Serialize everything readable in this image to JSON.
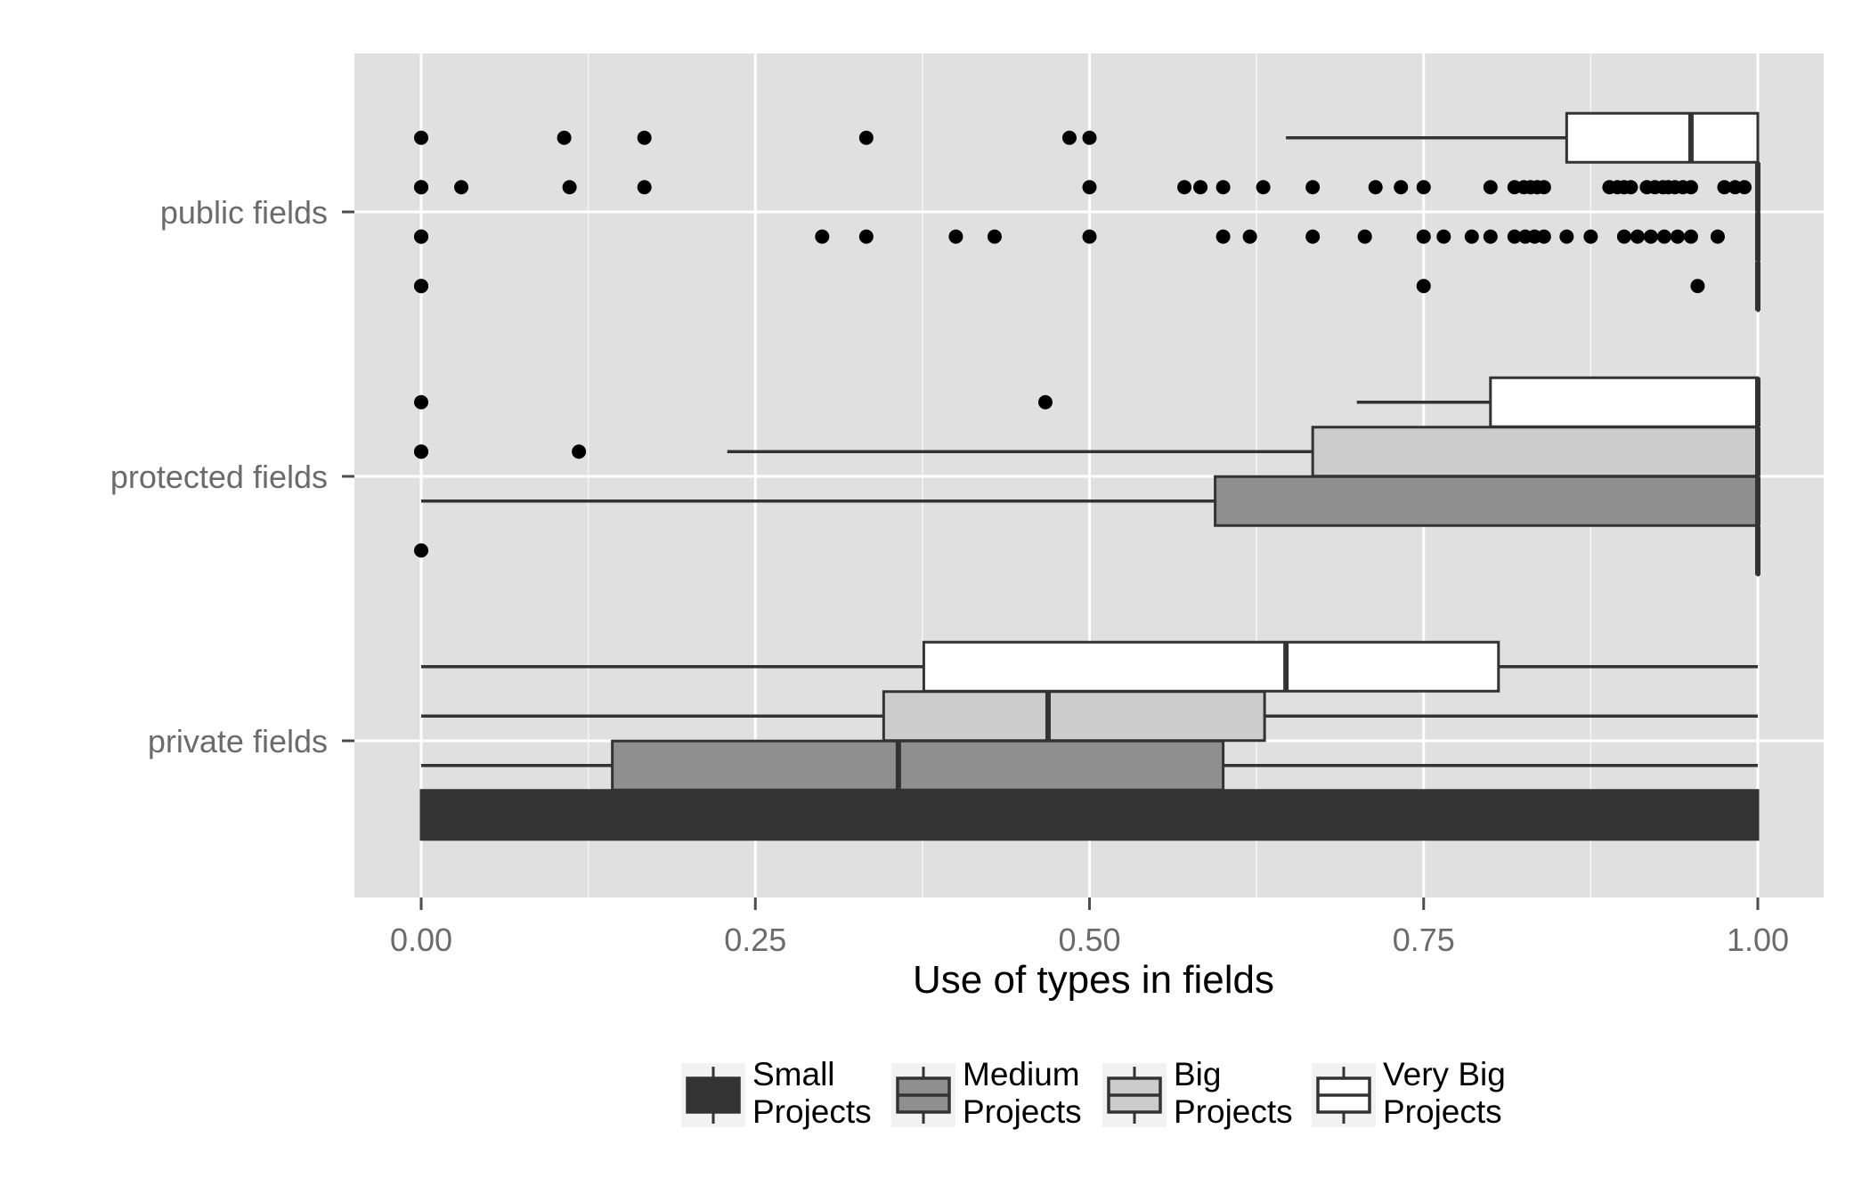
{
  "chart_data": {
    "type": "boxplot",
    "orientation": "horizontal",
    "xlabel": "Use of types in fields",
    "xlim": [
      -0.025,
      1.03
    ],
    "x_ticks": [
      0,
      0.25,
      0.5,
      0.75,
      1
    ],
    "x_tick_labels": [
      "0.00",
      "0.25",
      "0.50",
      "0.75",
      "1.00"
    ],
    "categories": [
      "public fields",
      "protected fields",
      "private fields"
    ],
    "category_order_bottom_to_top": [
      "private fields",
      "protected fields",
      "public fields"
    ],
    "legend_position": "bottom",
    "grid": true,
    "colors": {
      "panel_background": "#e0e0e0",
      "grid": "#ffffff",
      "outline": "#333333",
      "points": "#000000"
    },
    "series": [
      {
        "name": "Small Projects",
        "legend_lines": [
          "Small",
          "Projects"
        ],
        "fill": "#333333",
        "boxes": {
          "public fields": {
            "min": 1.0,
            "q1": 1.0,
            "median": 1.0,
            "q3": 1.0,
            "max": 1.0,
            "outliers": [
              0,
              0,
              0.75,
              0.955
            ]
          },
          "protected fields": {
            "min": 1.0,
            "q1": 1.0,
            "median": 1.0,
            "q3": 1.0,
            "max": 1.0,
            "outliers": [
              0
            ]
          },
          "private fields": {
            "min": 0.0,
            "q1": 0.0,
            "median": 0.212,
            "q3": 1.0,
            "max": 1.0,
            "outliers": []
          }
        }
      },
      {
        "name": "Medium Projects",
        "legend_lines": [
          "Medium",
          "Projects"
        ],
        "fill": "#8f8f8f",
        "boxes": {
          "public fields": {
            "min": 1.0,
            "q1": 1.0,
            "median": 1.0,
            "q3": 1.0,
            "max": 1.0,
            "outliers": [
              0,
              0,
              0.3,
              0.333,
              0.4,
              0.429,
              0.5,
              0.6,
              0.62,
              0.667,
              0.706,
              0.75,
              0.765,
              0.786,
              0.8,
              0.818,
              0.826,
              0.833,
              0.84,
              0.857,
              0.875,
              0.9,
              0.91,
              0.92,
              0.93,
              0.94,
              0.95,
              0.97
            ]
          },
          "protected fields": {
            "min": 0.0,
            "q1": 0.594,
            "median": 1.0,
            "q3": 1.0,
            "max": 1.0,
            "outliers": []
          },
          "private fields": {
            "min": 0.0,
            "q1": 0.143,
            "median": 0.357,
            "q3": 0.6,
            "max": 1.0,
            "outliers": []
          }
        }
      },
      {
        "name": "Big Projects",
        "legend_lines": [
          "Big",
          "Projects"
        ],
        "fill": "#cccccc",
        "boxes": {
          "public fields": {
            "min": 1.0,
            "q1": 1.0,
            "median": 1.0,
            "q3": 1.0,
            "max": 1.0,
            "outliers": [
              0,
              0,
              0.03,
              0.111,
              0.167,
              0.5,
              0.571,
              0.583,
              0.6,
              0.63,
              0.667,
              0.714,
              0.733,
              0.75,
              0.8,
              0.818,
              0.825,
              0.83,
              0.835,
              0.84,
              0.889,
              0.895,
              0.9,
              0.905,
              0.917,
              0.923,
              0.929,
              0.933,
              0.938,
              0.944,
              0.95,
              0.975,
              0.983,
              0.99
            ]
          },
          "protected fields": {
            "min": 0.229,
            "q1": 0.667,
            "median": 1.0,
            "q3": 1.0,
            "max": 1.0,
            "outliers": [
              0,
              0,
              0.118
            ]
          },
          "private fields": {
            "min": 0.0,
            "q1": 0.346,
            "median": 0.469,
            "q3": 0.631,
            "max": 1.0,
            "outliers": []
          }
        }
      },
      {
        "name": "Very Big Projects",
        "legend_lines": [
          "Very Big",
          "Projects"
        ],
        "fill": "#ffffff",
        "boxes": {
          "public fields": {
            "min": 0.647,
            "q1": 0.857,
            "median": 0.95,
            "q3": 1.0,
            "max": 1.0,
            "outliers": [
              0,
              0.107,
              0.167,
              0.333,
              0.485,
              0.5
            ]
          },
          "protected fields": {
            "min": 0.7,
            "q1": 0.8,
            "median": 1.0,
            "q3": 1.0,
            "max": 1.0,
            "outliers": [
              0,
              0.467
            ]
          },
          "private fields": {
            "min": 0.0,
            "q1": 0.376,
            "median": 0.647,
            "q3": 0.806,
            "max": 1.0,
            "outliers": []
          }
        }
      }
    ]
  }
}
